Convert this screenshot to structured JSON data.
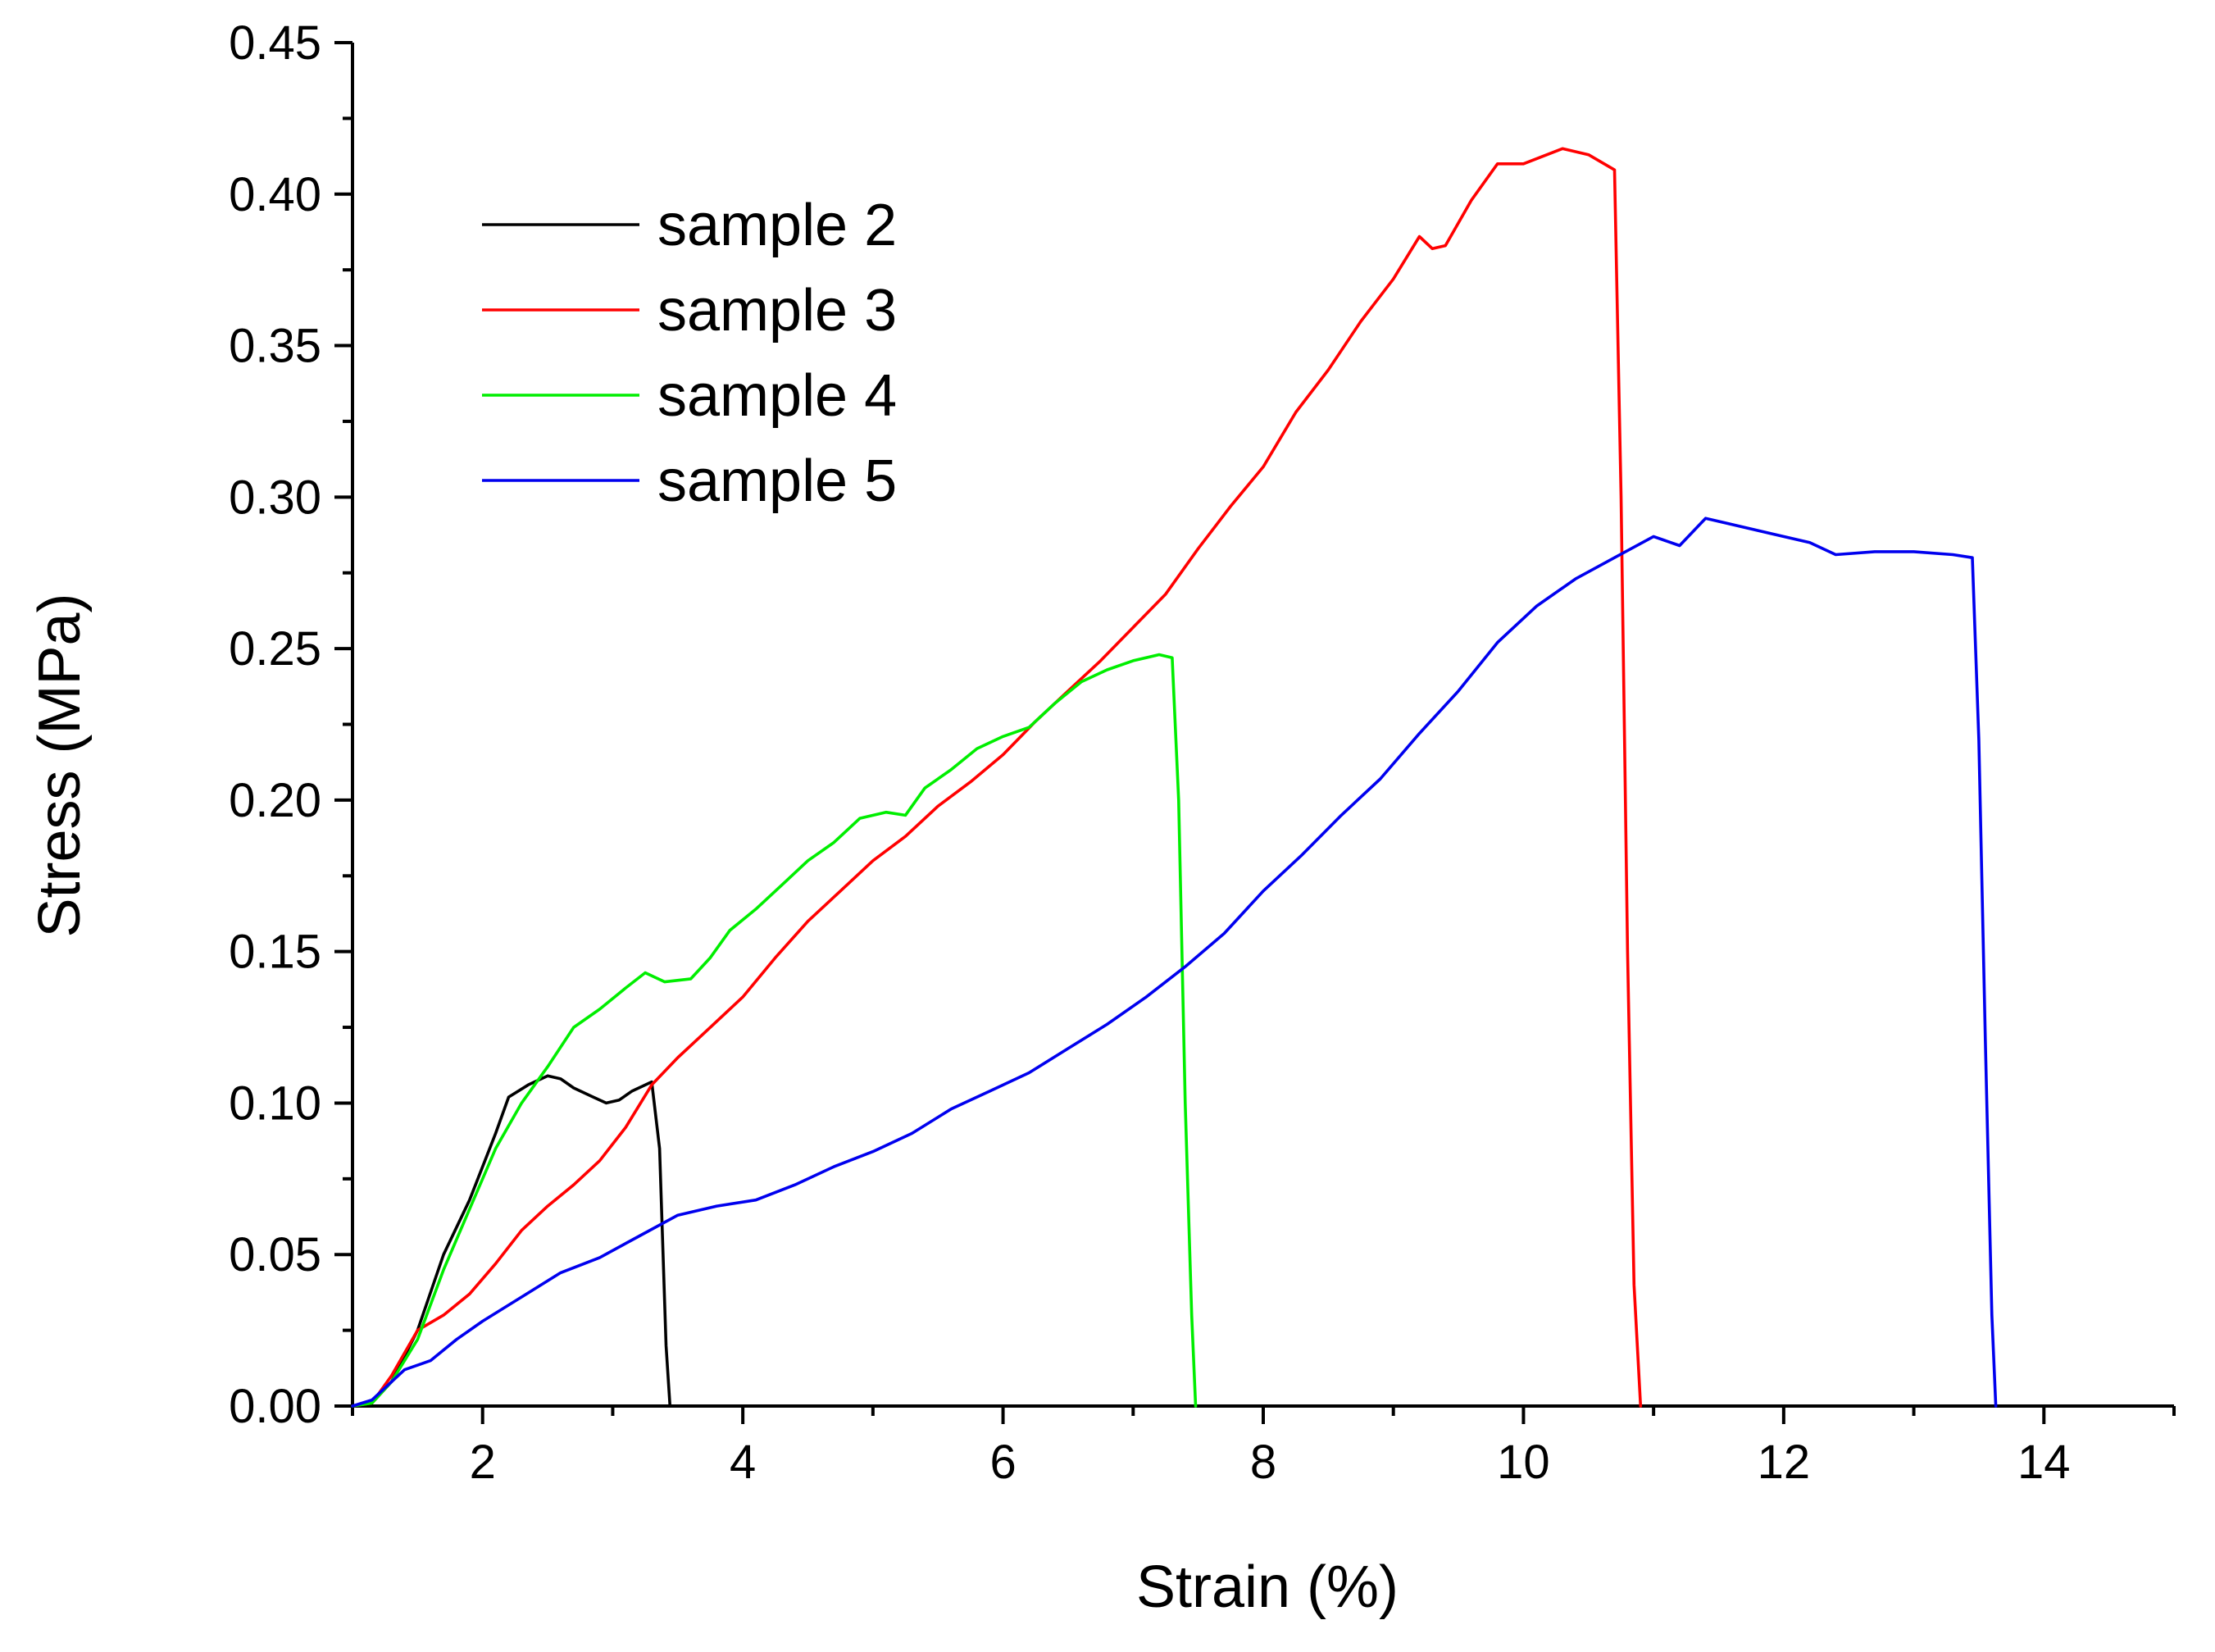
{
  "chart_data": {
    "type": "line",
    "title": "",
    "xlabel": "Strain (%)",
    "ylabel": "Stress (MPa)",
    "xlim": [
      1,
      15
    ],
    "ylim": [
      0,
      0.45
    ],
    "x_ticks": [
      2,
      4,
      6,
      8,
      10,
      12,
      14
    ],
    "x_tick_labels": [
      "2",
      "4",
      "6",
      "8",
      "10",
      "12",
      "14"
    ],
    "y_ticks": [
      0,
      0.05,
      0.1,
      0.15,
      0.2,
      0.25,
      0.3,
      0.35,
      0.4,
      0.45
    ],
    "y_tick_labels": [
      "0.00",
      "0.05",
      "0.10",
      "0.15",
      "0.20",
      "0.25",
      "0.30",
      "0.35",
      "0.40",
      "0.45"
    ],
    "grid": false,
    "legend_position": "top-left",
    "series": [
      {
        "name": "sample 2",
        "color": "#000000",
        "points": [
          [
            1.0,
            0.0
          ],
          [
            1.15,
            0.001
          ],
          [
            1.3,
            0.008
          ],
          [
            1.5,
            0.025
          ],
          [
            1.7,
            0.05
          ],
          [
            1.9,
            0.068
          ],
          [
            2.1,
            0.09
          ],
          [
            2.2,
            0.102
          ],
          [
            2.35,
            0.106
          ],
          [
            2.5,
            0.109
          ],
          [
            2.6,
            0.108
          ],
          [
            2.7,
            0.105
          ],
          [
            2.85,
            0.102
          ],
          [
            2.95,
            0.1
          ],
          [
            3.05,
            0.101
          ],
          [
            3.15,
            0.104
          ],
          [
            3.3,
            0.107
          ],
          [
            3.36,
            0.085
          ],
          [
            3.41,
            0.02
          ],
          [
            3.44,
            0.0
          ]
        ]
      },
      {
        "name": "sample 3",
        "color": "#ff0000",
        "points": [
          [
            1.0,
            0.0
          ],
          [
            1.15,
            0.001
          ],
          [
            1.3,
            0.01
          ],
          [
            1.5,
            0.025
          ],
          [
            1.7,
            0.03
          ],
          [
            1.9,
            0.037
          ],
          [
            2.1,
            0.047
          ],
          [
            2.3,
            0.058
          ],
          [
            2.5,
            0.066
          ],
          [
            2.7,
            0.073
          ],
          [
            2.9,
            0.081
          ],
          [
            3.1,
            0.092
          ],
          [
            3.3,
            0.106
          ],
          [
            3.5,
            0.115
          ],
          [
            3.75,
            0.125
          ],
          [
            4.0,
            0.135
          ],
          [
            4.25,
            0.148
          ],
          [
            4.5,
            0.16
          ],
          [
            4.75,
            0.17
          ],
          [
            5.0,
            0.18
          ],
          [
            5.25,
            0.188
          ],
          [
            5.5,
            0.198
          ],
          [
            5.75,
            0.206
          ],
          [
            6.0,
            0.215
          ],
          [
            6.25,
            0.226
          ],
          [
            6.5,
            0.236
          ],
          [
            6.75,
            0.246
          ],
          [
            7.0,
            0.257
          ],
          [
            7.25,
            0.268
          ],
          [
            7.5,
            0.283
          ],
          [
            7.75,
            0.297
          ],
          [
            8.0,
            0.31
          ],
          [
            8.25,
            0.328
          ],
          [
            8.5,
            0.342
          ],
          [
            8.75,
            0.358
          ],
          [
            9.0,
            0.372
          ],
          [
            9.2,
            0.386
          ],
          [
            9.3,
            0.382
          ],
          [
            9.4,
            0.383
          ],
          [
            9.6,
            0.398
          ],
          [
            9.8,
            0.41
          ],
          [
            10.0,
            0.41
          ],
          [
            10.3,
            0.415
          ],
          [
            10.5,
            0.413
          ],
          [
            10.7,
            0.408
          ],
          [
            10.75,
            0.3
          ],
          [
            10.8,
            0.15
          ],
          [
            10.85,
            0.04
          ],
          [
            10.9,
            0.0
          ]
        ]
      },
      {
        "name": "sample 4",
        "color": "#00ee00",
        "points": [
          [
            1.0,
            0.0
          ],
          [
            1.15,
            0.001
          ],
          [
            1.3,
            0.008
          ],
          [
            1.5,
            0.022
          ],
          [
            1.7,
            0.045
          ],
          [
            1.9,
            0.065
          ],
          [
            2.1,
            0.085
          ],
          [
            2.3,
            0.1
          ],
          [
            2.5,
            0.112
          ],
          [
            2.7,
            0.125
          ],
          [
            2.9,
            0.131
          ],
          [
            3.1,
            0.138
          ],
          [
            3.25,
            0.143
          ],
          [
            3.4,
            0.14
          ],
          [
            3.6,
            0.141
          ],
          [
            3.75,
            0.148
          ],
          [
            3.9,
            0.157
          ],
          [
            4.1,
            0.164
          ],
          [
            4.3,
            0.172
          ],
          [
            4.5,
            0.18
          ],
          [
            4.7,
            0.186
          ],
          [
            4.9,
            0.194
          ],
          [
            5.1,
            0.196
          ],
          [
            5.25,
            0.195
          ],
          [
            5.4,
            0.204
          ],
          [
            5.6,
            0.21
          ],
          [
            5.8,
            0.217
          ],
          [
            6.0,
            0.221
          ],
          [
            6.2,
            0.224
          ],
          [
            6.4,
            0.232
          ],
          [
            6.6,
            0.239
          ],
          [
            6.8,
            0.243
          ],
          [
            7.0,
            0.246
          ],
          [
            7.2,
            0.248
          ],
          [
            7.3,
            0.247
          ],
          [
            7.35,
            0.2
          ],
          [
            7.4,
            0.1
          ],
          [
            7.45,
            0.03
          ],
          [
            7.48,
            0.0
          ]
        ]
      },
      {
        "name": "sample 5",
        "color": "#0000ee",
        "points": [
          [
            1.0,
            0.0
          ],
          [
            1.15,
            0.002
          ],
          [
            1.4,
            0.012
          ],
          [
            1.6,
            0.015
          ],
          [
            1.8,
            0.022
          ],
          [
            2.0,
            0.028
          ],
          [
            2.3,
            0.036
          ],
          [
            2.6,
            0.044
          ],
          [
            2.9,
            0.049
          ],
          [
            3.2,
            0.056
          ],
          [
            3.5,
            0.063
          ],
          [
            3.8,
            0.066
          ],
          [
            4.1,
            0.068
          ],
          [
            4.4,
            0.073
          ],
          [
            4.7,
            0.079
          ],
          [
            5.0,
            0.084
          ],
          [
            5.3,
            0.09
          ],
          [
            5.6,
            0.098
          ],
          [
            5.9,
            0.104
          ],
          [
            6.2,
            0.11
          ],
          [
            6.5,
            0.118
          ],
          [
            6.8,
            0.126
          ],
          [
            7.1,
            0.135
          ],
          [
            7.4,
            0.145
          ],
          [
            7.7,
            0.156
          ],
          [
            8.0,
            0.17
          ],
          [
            8.3,
            0.182
          ],
          [
            8.6,
            0.195
          ],
          [
            8.9,
            0.207
          ],
          [
            9.2,
            0.222
          ],
          [
            9.5,
            0.236
          ],
          [
            9.8,
            0.252
          ],
          [
            10.1,
            0.264
          ],
          [
            10.4,
            0.273
          ],
          [
            10.7,
            0.28
          ],
          [
            11.0,
            0.287
          ],
          [
            11.2,
            0.284
          ],
          [
            11.4,
            0.293
          ],
          [
            11.6,
            0.291
          ],
          [
            11.9,
            0.288
          ],
          [
            12.2,
            0.285
          ],
          [
            12.4,
            0.281
          ],
          [
            12.7,
            0.282
          ],
          [
            13.0,
            0.282
          ],
          [
            13.3,
            0.281
          ],
          [
            13.45,
            0.28
          ],
          [
            13.5,
            0.22
          ],
          [
            13.55,
            0.12
          ],
          [
            13.6,
            0.03
          ],
          [
            13.63,
            0.0
          ]
        ]
      }
    ]
  }
}
